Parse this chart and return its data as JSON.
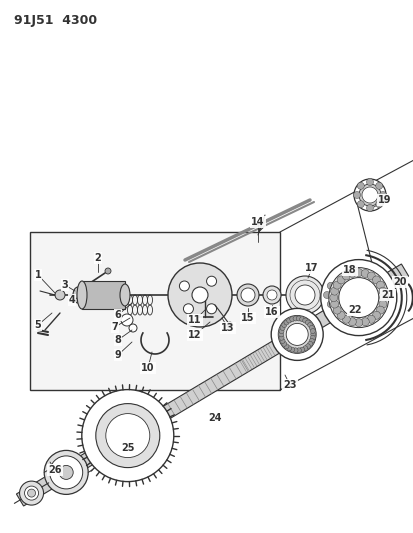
{
  "title": "91J51  4300",
  "bg_color": "#ffffff",
  "line_color": "#333333",
  "figsize": [
    4.14,
    5.33
  ],
  "dpi": 100,
  "label_fontsize": 7.0
}
